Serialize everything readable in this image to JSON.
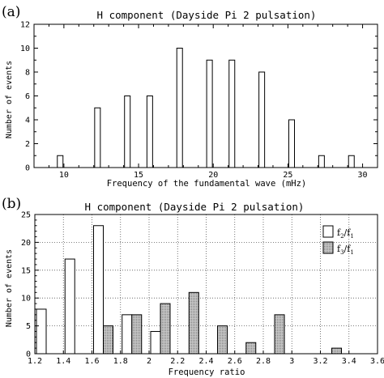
{
  "chart_data": [
    {
      "type": "bar",
      "panel_label": "(a)",
      "title": "H component (Dayside Pi 2 pulsation)",
      "xlabel": "Frequency of the fundamental wave (mHz)",
      "ylabel": "Number of events",
      "xlim": [
        8,
        31
      ],
      "ylim": [
        0,
        12
      ],
      "x_ticks": [
        10,
        15,
        20,
        25,
        30
      ],
      "y_ticks": [
        0,
        2,
        4,
        6,
        8,
        10,
        12
      ],
      "grid": false,
      "series": [
        {
          "x": [
            9.75,
            12.25,
            14.25,
            15.75,
            17.75,
            19.75,
            21.25,
            23.25,
            25.25,
            27.25,
            29.25
          ],
          "values": [
            1,
            5,
            6,
            6,
            10,
            9,
            9,
            8,
            4,
            1,
            1
          ]
        }
      ]
    },
    {
      "type": "bar",
      "panel_label": "(b)",
      "title": "H component (Dayside Pi 2 pulsation)",
      "xlabel": "Frequency ratio",
      "ylabel": "Number of events",
      "xlim": [
        1.2,
        3.6
      ],
      "ylim": [
        0,
        25
      ],
      "x_ticks": [
        1.2,
        1.4,
        1.6,
        1.8,
        2.0,
        2.2,
        2.4,
        2.6,
        2.8,
        3.0,
        3.2,
        3.4,
        3.6
      ],
      "y_ticks": [
        0,
        5,
        10,
        15,
        20,
        25
      ],
      "grid": true,
      "legend_position": "top-right",
      "categories": [
        1.2,
        1.4,
        1.6,
        1.8,
        2.0,
        2.2,
        2.4,
        2.6,
        2.8,
        3.0,
        3.2,
        3.4
      ],
      "series": [
        {
          "legend_main": "f",
          "legend_sub1": "2",
          "legend_sep": "/",
          "legend_sub2": "1",
          "color": "#ffffff",
          "values": [
            8,
            17,
            23,
            7,
            4,
            0,
            0,
            0,
            0,
            0,
            0,
            0
          ]
        },
        {
          "legend_main": "f",
          "legend_sub1": "3",
          "legend_sep": "/",
          "legend_sub2": "1",
          "color": "#bdbdbd",
          "values": [
            0,
            0,
            5,
            7,
            9,
            11,
            5,
            2,
            7,
            0,
            1,
            0
          ]
        }
      ]
    }
  ]
}
